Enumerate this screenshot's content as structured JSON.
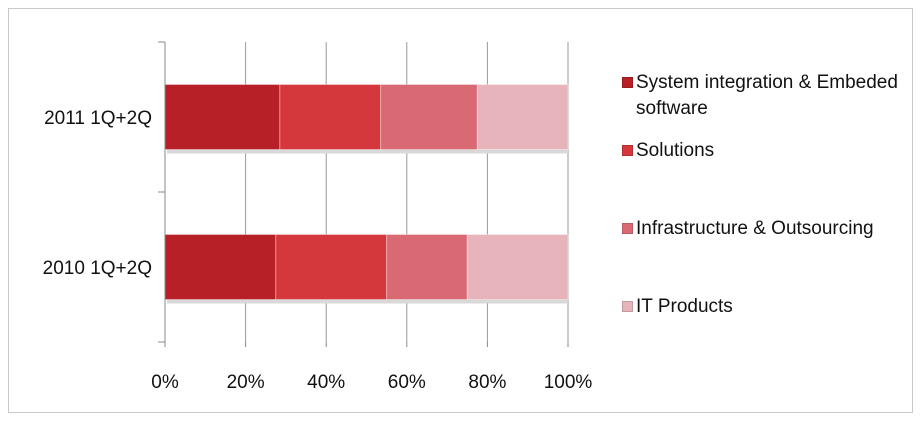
{
  "chart_data": {
    "type": "bar",
    "orientation": "horizontal",
    "stacked": "percent",
    "categories": [
      "2011 1Q+2Q",
      "2010 1Q+2Q"
    ],
    "series": [
      {
        "name": "System integration & Embeded software",
        "values": [
          28.5,
          27.5
        ],
        "color": "#b82027"
      },
      {
        "name": "Solutions",
        "values": [
          25.0,
          27.5
        ],
        "color": "#d4383d"
      },
      {
        "name": "Infrastructure & Outsourcing",
        "values": [
          24.0,
          20.0
        ],
        "color": "#d96a74"
      },
      {
        "name": "IT Products",
        "values": [
          22.5,
          25.0
        ],
        "color": "#e8b4bc"
      }
    ],
    "xlim": [
      0,
      100
    ],
    "xticks": [
      "0%",
      "20%",
      "40%",
      "60%",
      "80%",
      "100%"
    ],
    "grid": true,
    "legend": "right"
  }
}
